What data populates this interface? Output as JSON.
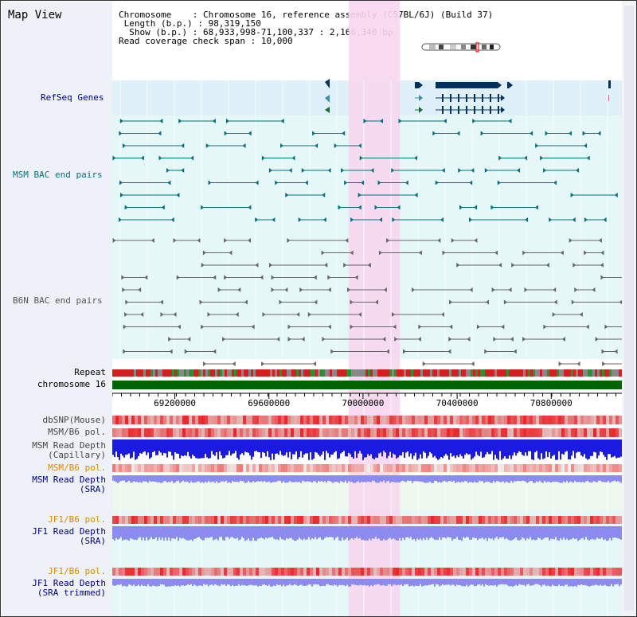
{
  "view": {
    "title": "Map View"
  },
  "info": {
    "chromosome_label": "Chromosome",
    "chromosome_value": "Chromosome 16, reference assembly (C57BL/6J) (Build 37)",
    "length_label": "Length (b.p.)",
    "length_value": "98,319,150",
    "show_label": "Show (b.p.)",
    "show_value": "68,933,998-71,100,337 : 2,166,340 bp",
    "span_label": "Read coverage check span",
    "span_value": "10,000"
  },
  "tracks": {
    "refseq": "RefSeq Genes",
    "msm_bac": "MSM BAC end pairs",
    "b6n_bac": "B6N BAC end pairs",
    "repeat": "Repeat",
    "chromosome": "chromosome 16",
    "dbsnp": "dbSNP(Mouse)",
    "msm_b6_pol_1": "MSM/B6 pol.",
    "msm_depth_cap_1": "MSM Read Depth",
    "msm_depth_cap_2": "(Capillary)",
    "msm_b6_pol_2": "MSM/B6 pol.",
    "msm_depth_sra_1": "MSM Read Depth",
    "msm_depth_sra_2": "(SRA)",
    "jf1_b6_pol_1": "JF1/B6 pol.",
    "jf1_depth_sra_1": "JF1 Read Depth",
    "jf1_depth_sra_2": "(SRA)",
    "jf1_b6_pol_2": "JF1/B6 pol.",
    "jf1_depth_trim_1": "JF1 Read Depth",
    "jf1_depth_trim_2": "(SRA trimmed)"
  },
  "axis": {
    "ticks": [
      "69200000",
      "69600000",
      "70000000",
      "70400000",
      "70800000"
    ],
    "tick_values": [
      69200000,
      69600000,
      70000000,
      70400000,
      70800000
    ],
    "range": [
      68933998,
      71100337
    ]
  },
  "colors": {
    "refseq_bg": "#dff0f8",
    "bac_bg": "#e6f7f8",
    "highlight": "#f7d7ee",
    "chrom_green": "#006400",
    "title_blue": "#000080",
    "teal": "#007080",
    "gray": "#666666",
    "orange": "#d88a00",
    "depth_blue": "#1a1ae0",
    "depth_light": "#8c8cf0"
  },
  "highlight_range": [
    70000000,
    70130000
  ]
}
